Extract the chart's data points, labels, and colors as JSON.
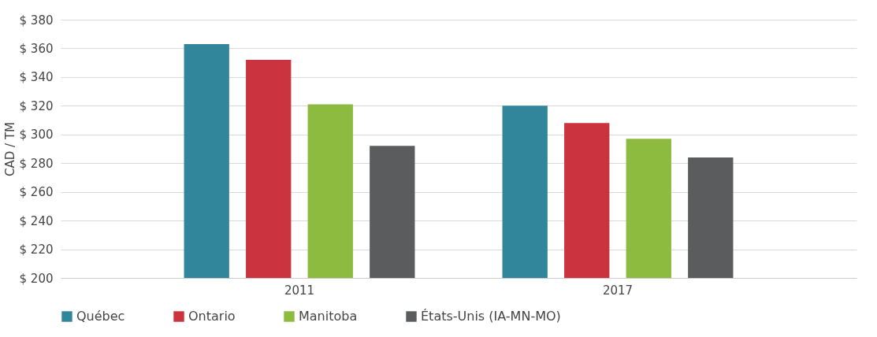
{
  "chart_data": {
    "type": "bar",
    "ylabel": "CAD / TM",
    "categories": [
      "2011",
      "2017"
    ],
    "series": [
      {
        "name": "Québec",
        "color": "#31869b",
        "values": [
          363,
          320
        ]
      },
      {
        "name": "Ontario",
        "color": "#cb333f",
        "values": [
          352,
          308
        ]
      },
      {
        "name": "Manitoba",
        "color": "#8dbb3f",
        "values": [
          321,
          297
        ]
      },
      {
        "name": "États-Unis (IA-MN-MO)",
        "color": "#5b5c5e",
        "values": [
          292,
          284
        ]
      }
    ],
    "ylim": [
      200,
      380
    ],
    "yticks": [
      {
        "value": 200,
        "label": "$ 200"
      },
      {
        "value": 220,
        "label": "$ 220"
      },
      {
        "value": 240,
        "label": "$ 240"
      },
      {
        "value": 260,
        "label": "$ 260"
      },
      {
        "value": 280,
        "label": "$ 280"
      },
      {
        "value": 300,
        "label": "$ 300"
      },
      {
        "value": 320,
        "label": "$ 320"
      },
      {
        "value": 340,
        "label": "$ 340"
      },
      {
        "value": 360,
        "label": "$ 360"
      },
      {
        "value": 380,
        "label": "$ 380"
      }
    ],
    "grid": "y",
    "legend": "bottom"
  }
}
